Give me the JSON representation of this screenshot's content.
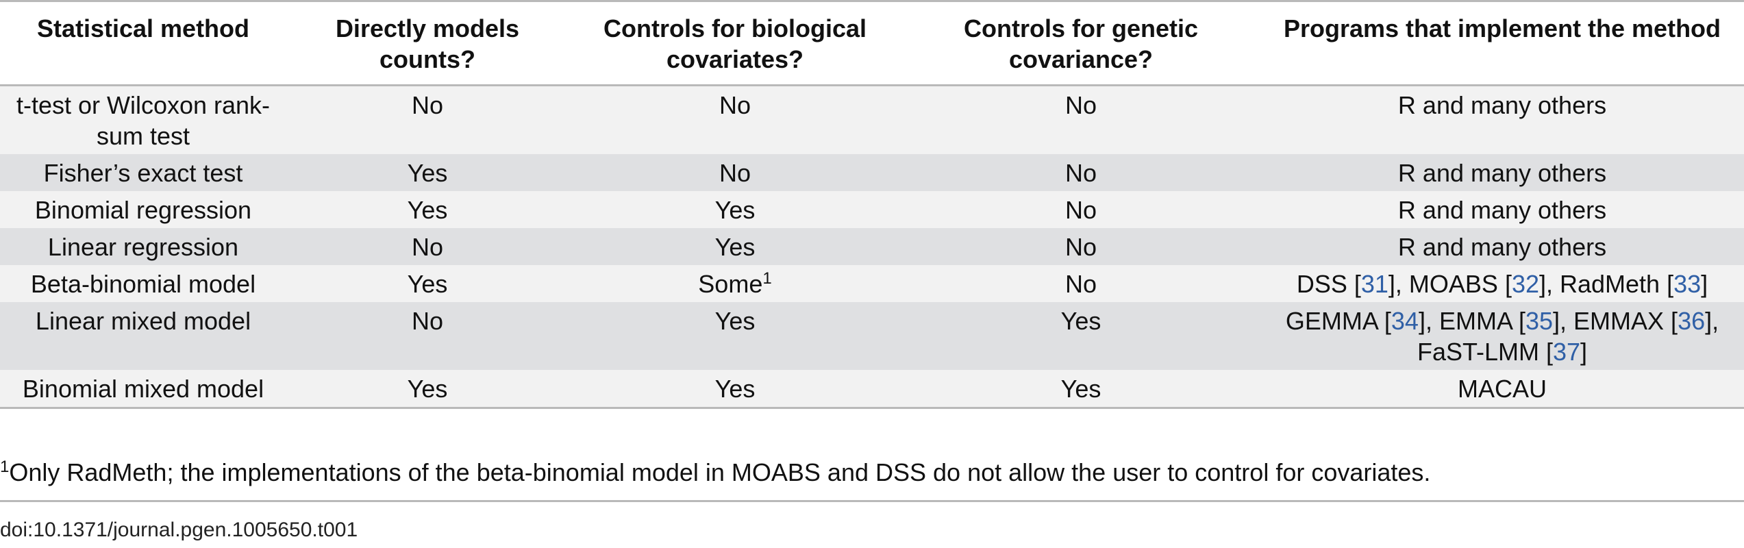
{
  "table": {
    "headers": [
      "Statistical method",
      "Directly models counts?",
      "Controls for biological covariates?",
      "Controls for genetic covariance?",
      "Programs that implement the method"
    ],
    "rows": [
      {
        "method": "t-test or Wilcoxon rank-sum test",
        "counts": "No",
        "bio": "No",
        "genetic": "No",
        "programs": "R and many others"
      },
      {
        "method": "Fisher’s exact test",
        "counts": "Yes",
        "bio": "No",
        "genetic": "No",
        "programs": "R and many others"
      },
      {
        "method": "Binomial regression",
        "counts": "Yes",
        "bio": "Yes",
        "genetic": "No",
        "programs": "R and many others"
      },
      {
        "method": "Linear regression",
        "counts": "No",
        "bio": "Yes",
        "genetic": "No",
        "programs": "R and many others"
      },
      {
        "method": "Beta-binomial model",
        "counts": "Yes",
        "bio": "Some",
        "bio_sup": "1",
        "genetic": "No",
        "programs_parts": [
          "DSS [",
          "31",
          "], MOABS [",
          "32",
          "], RadMeth [",
          "33",
          "]"
        ]
      },
      {
        "method": "Linear mixed model",
        "counts": "No",
        "bio": "Yes",
        "genetic": "Yes",
        "programs_parts": [
          "GEMMA [",
          "34",
          "], EMMA [",
          "35",
          "], EMMAX [",
          "36",
          "], FaST-LMM [",
          "37",
          "]"
        ]
      },
      {
        "method": "Binomial mixed model",
        "counts": "Yes",
        "bio": "Yes",
        "genetic": "Yes",
        "programs": "MACAU"
      }
    ]
  },
  "footnote": {
    "marker": "1",
    "text": "Only RadMeth; the implementations of the beta-binomial model in MOABS and DSS do not allow the user to control for covariates."
  },
  "doi": "doi:10.1371/journal.pgen.1005650.t001",
  "colors": {
    "row_light": "#f2f2f2",
    "row_dark": "#dfe0e2",
    "rule": "#b9b9b9",
    "link": "#2f5fa6"
  }
}
